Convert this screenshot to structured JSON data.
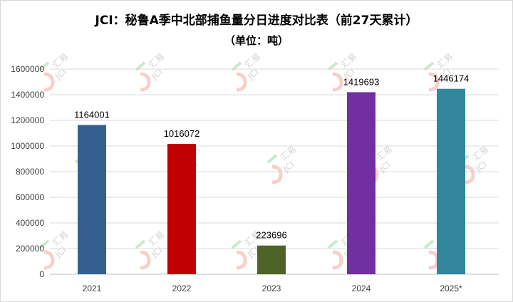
{
  "chart_data": {
    "type": "bar",
    "title": "JCI：秘鲁A季中北部捕鱼量分日进度对比表（前27天累计）",
    "subtitle": "（单位：吨）",
    "categories": [
      "2021",
      "2022",
      "2023",
      "2024",
      "2025*"
    ],
    "values": [
      1164001,
      1016072,
      223696,
      1419693,
      1446174
    ],
    "colors": [
      "#34608f",
      "#c00000",
      "#4f6228",
      "#7030a0",
      "#31869b"
    ],
    "ylim": [
      0,
      1600000
    ],
    "yticks": [
      0,
      200000,
      400000,
      600000,
      800000,
      1000000,
      1200000,
      1400000,
      1600000
    ],
    "grid": true,
    "xlabel": "",
    "ylabel": ""
  },
  "watermark": {
    "cn": "汇易",
    "en": "JCI"
  }
}
